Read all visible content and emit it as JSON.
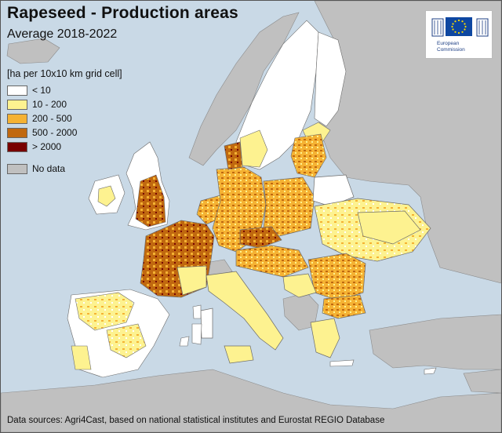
{
  "title": "Rapeseed - Production areas",
  "subtitle": "Average 2018-2022",
  "legend": {
    "title": "[ha per 10x10 km grid cell]",
    "classes": [
      {
        "label": "< 10",
        "color": "#ffffff"
      },
      {
        "label": "10 - 200",
        "color": "#fdf290"
      },
      {
        "label": "200 - 500",
        "color": "#f5b233"
      },
      {
        "label": "500 - 2000",
        "color": "#c0680f"
      },
      {
        "label": "> 2000",
        "color": "#780000"
      }
    ],
    "no_data": {
      "label": "No data",
      "color": "#c0c0c0"
    }
  },
  "logo": {
    "icon": "eu-flag-icon",
    "line1": "European",
    "line2": "Commission"
  },
  "colors": {
    "sea": "#c9d9e6",
    "nodata_land": "#c0c0c0",
    "border": "#6b6b6b"
  },
  "source": "Data sources: Agri4Cast, based on national statistical institutes and Eurostat REGIO Database"
}
